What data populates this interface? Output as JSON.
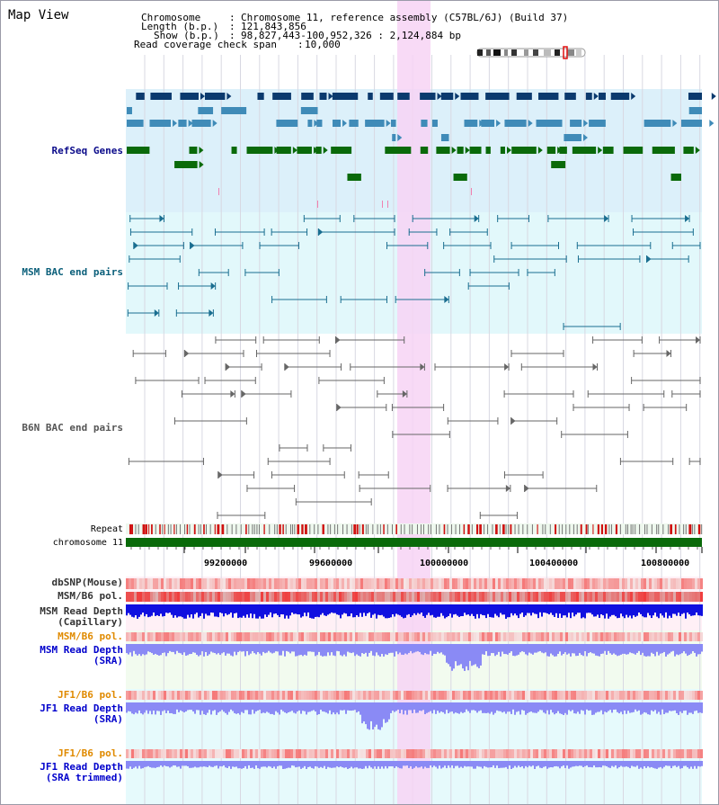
{
  "window": {
    "title": "Map View"
  },
  "header": {
    "chromosome_key": "Chromosome",
    "chromosome_value": "Chromosome 11, reference assembly (C57BL/6J) (Build 37)",
    "length_key": "Length (b.p.)",
    "length_value": "121,843,856",
    "show_key": "Show (b.p.)",
    "show_value": "98,827,443-100,952,326 : 2,124,884 bp",
    "coverage_key": "Read coverage check span",
    "coverage_value": "10,000"
  },
  "tracks": {
    "refseq": "RefSeq Genes",
    "msm_bac": "MSM BAC end pairs",
    "b6n_bac": "B6N BAC end pairs",
    "repeat": "Repeat",
    "chromosome": "chromosome 11",
    "dbsnp": "dbSNP(Mouse)",
    "msm_b6_pol": "MSM/B6 pol.",
    "msm_depth_cap_1": "MSM Read Depth",
    "msm_depth_cap_2": "(Capillary)",
    "msm_b6_pol_2": "MSM/B6 pol.",
    "msm_depth_sra_1": "MSM Read Depth",
    "msm_depth_sra_2": "(SRA)",
    "jf1_b6_pol": "JF1/B6 pol.",
    "jf1_depth_sra_1": "JF1 Read Depth",
    "jf1_depth_sra_2": "(SRA)",
    "jf1_b6_pol_2": "JF1/B6 pol.",
    "jf1_depth_trim_1": "JF1 Read Depth",
    "jf1_depth_trim_2": "(SRA trimmed)"
  },
  "axis": {
    "ticks": [
      "99200000",
      "99600000",
      "100000000",
      "100400000",
      "100800000"
    ]
  },
  "colors": {
    "highlight": "#f7d3f4",
    "refseq_bg": "#dcf0fa",
    "msm_bg": "#e2f8fb",
    "gene_navy": "#0b3a6e",
    "gene_steel": "#3f8bb8",
    "gene_green": "#0a6a0a",
    "bac_teal": "#1a6e90",
    "bac_gray": "#666666",
    "chrom_green": "#0a6a0a",
    "depth_blue": "#1010e0",
    "depth_light": "#8a8af5"
  }
}
